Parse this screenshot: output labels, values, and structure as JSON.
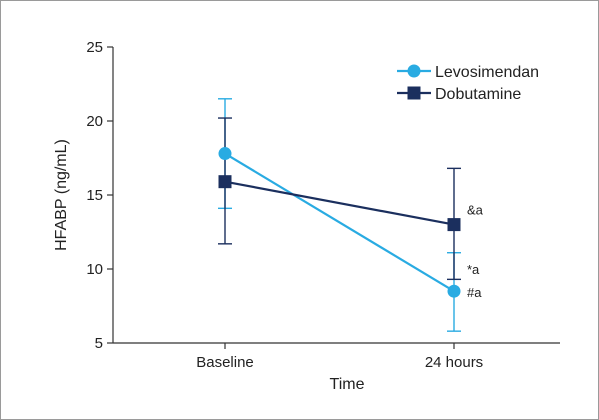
{
  "chart_data": {
    "type": "line",
    "categories": [
      "Baseline",
      "24 hours"
    ],
    "xlabel": "Time",
    "ylabel": "HFABP (ng/mL)",
    "ylim": [
      5,
      25
    ],
    "yticks": [
      5,
      10,
      15,
      20,
      25
    ],
    "grid": false,
    "legend_position": "top-right",
    "series": [
      {
        "name": "Levosimendan",
        "color": "#29abe2",
        "marker": "circle",
        "values": [
          17.8,
          8.5
        ],
        "error_low": [
          14.1,
          5.8
        ],
        "error_high": [
          21.5,
          11.1
        ],
        "annotations": [
          "",
          "#a"
        ]
      },
      {
        "name": "Dobutamine",
        "color": "#1b2f5e",
        "marker": "square",
        "values": [
          15.9,
          13.0
        ],
        "error_low": [
          11.7,
          9.3
        ],
        "error_high": [
          20.2,
          16.8
        ],
        "annotations": [
          "",
          "&a"
        ]
      }
    ],
    "extra_annotations": [
      {
        "category": "24 hours",
        "value": 10.0,
        "text": "*a"
      }
    ]
  }
}
